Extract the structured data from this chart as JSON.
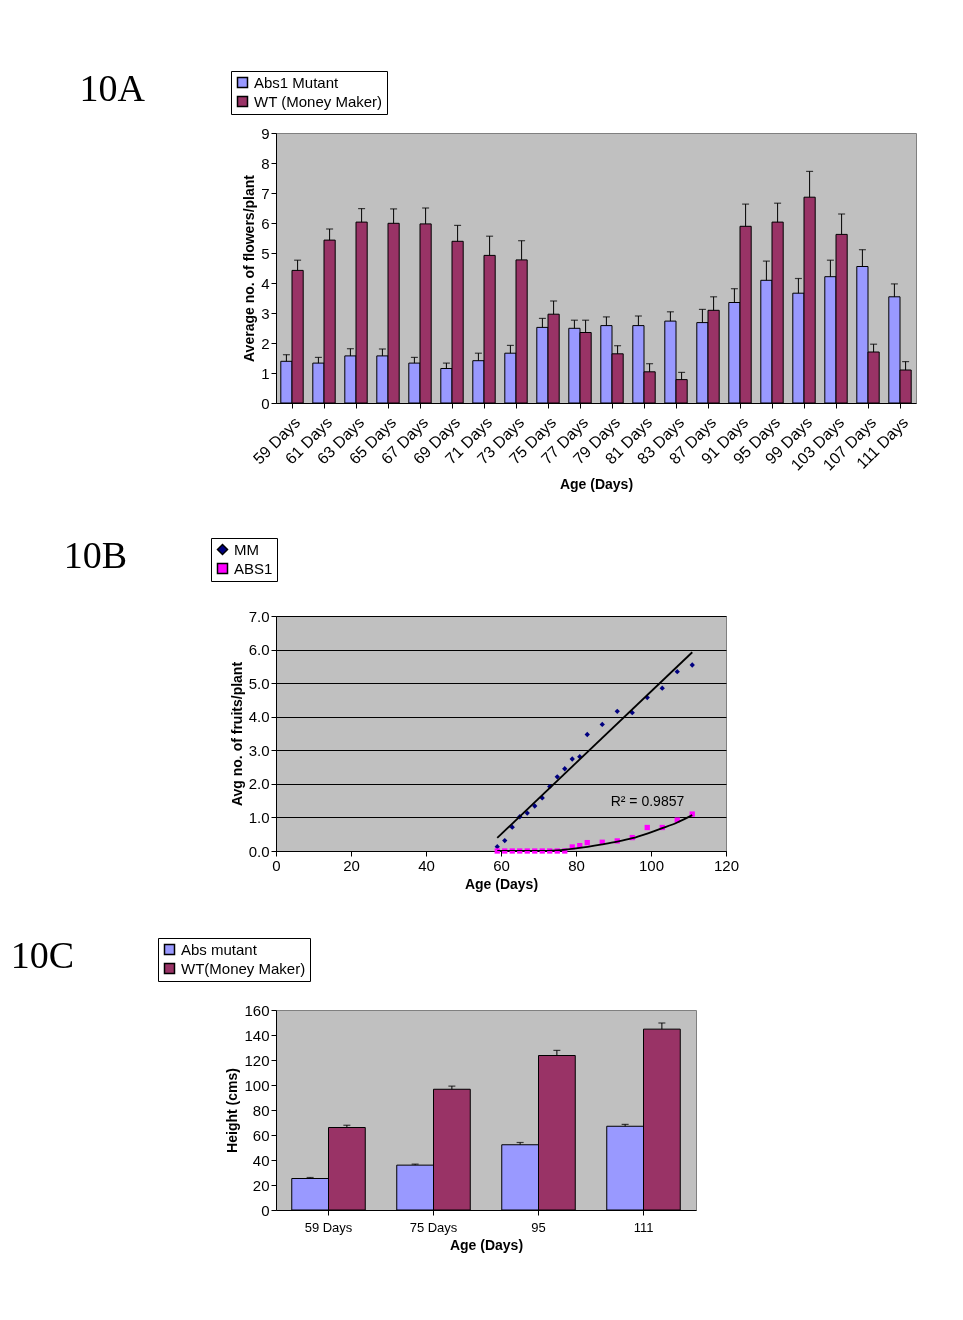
{
  "chart_data": [
    {
      "type": "bar",
      "title": "10A",
      "xlabel": "Age (Days)",
      "ylabel": "Average no. of flowers/plant",
      "categories": [
        "59 Days",
        "61 Days",
        "63 Days",
        "65 Days",
        "67 Days",
        "69 Days",
        "71 Days",
        "73 Days",
        "75 Days",
        "77 Days",
        "79 Days",
        "81 Days",
        "83 Days",
        "87 Days",
        "91 Days",
        "95 Days",
        "99 Days",
        "103 Days",
        "107 Days",
        "111 Days"
      ],
      "series": [
        {
          "name": "Abs1 Mutant",
          "color": "#9999ff",
          "values": [
            1.39,
            1.33,
            1.57,
            1.57,
            1.33,
            1.15,
            1.41,
            1.66,
            2.52,
            2.49,
            2.58,
            2.58,
            2.73,
            2.68,
            3.35,
            4.09,
            3.66,
            4.21,
            4.55,
            3.54
          ],
          "errors": [
            [
              1.39,
              1.61
            ],
            [
              1.33,
              1.52
            ],
            [
              1.57,
              1.81
            ],
            [
              1.57,
              1.8
            ],
            [
              1.33,
              1.52
            ],
            [
              1.15,
              1.33
            ],
            [
              1.41,
              1.66
            ],
            [
              1.66,
              1.92
            ],
            [
              2.52,
              2.82
            ],
            [
              2.49,
              2.76
            ],
            [
              2.58,
              2.87
            ],
            [
              2.58,
              2.9
            ],
            [
              2.73,
              3.04
            ],
            [
              2.68,
              3.12
            ],
            [
              3.35,
              3.81
            ],
            [
              4.09,
              4.73
            ],
            [
              3.66,
              4.15
            ],
            [
              4.21,
              4.76
            ],
            [
              4.55,
              5.11
            ],
            [
              3.54,
              3.97
            ]
          ]
        },
        {
          "name": "WT (Money Maker)",
          "color": "#993366",
          "values": [
            4.42,
            5.43,
            6.03,
            5.99,
            5.97,
            5.39,
            4.92,
            4.77,
            2.96,
            2.35,
            1.64,
            1.04,
            0.78,
            3.09,
            5.89,
            6.03,
            6.86,
            5.62,
            1.7,
            1.1
          ],
          "errors": [
            [
              4.42,
              4.76
            ],
            [
              5.43,
              5.8
            ],
            [
              6.03,
              6.48
            ],
            [
              5.99,
              6.47
            ],
            [
              5.97,
              6.5
            ],
            [
              5.39,
              5.92
            ],
            [
              4.92,
              5.56
            ],
            [
              4.77,
              5.41
            ],
            [
              2.96,
              3.4
            ],
            [
              2.35,
              2.76
            ],
            [
              1.64,
              1.91
            ],
            [
              1.04,
              1.31
            ],
            [
              0.78,
              1.02
            ],
            [
              3.09,
              3.54
            ],
            [
              5.89,
              6.63
            ],
            [
              6.03,
              6.66
            ],
            [
              6.86,
              7.72
            ],
            [
              5.62,
              6.3
            ],
            [
              1.7,
              1.96
            ],
            [
              1.1,
              1.38
            ]
          ]
        }
      ],
      "ylim": [
        0,
        9
      ],
      "yticks": [
        0,
        1,
        2,
        3,
        4,
        5,
        6,
        7,
        8,
        9
      ],
      "legend": "top left"
    },
    {
      "type": "scatter",
      "title": "10B",
      "xlabel": "Age (Days)",
      "ylabel": "Avg no. of fruits/plant",
      "xlim": [
        0,
        120
      ],
      "xticks": [
        0,
        20,
        40,
        60,
        80,
        100,
        120
      ],
      "ylim": [
        0,
        7
      ],
      "yticks": [
        {
          "value": 0,
          "label": "0.0"
        },
        {
          "value": 1,
          "label": "1.0"
        },
        {
          "value": 2,
          "label": "2.0"
        },
        {
          "value": 3,
          "label": "3.0"
        },
        {
          "value": 4,
          "label": "4.0"
        },
        {
          "value": 5,
          "label": "5.0"
        },
        {
          "value": 6,
          "label": "6.0"
        },
        {
          "value": 7,
          "label": "7.0"
        }
      ],
      "grid": "y",
      "legend": "top left",
      "annotations": [
        "R² = 0.9857"
      ],
      "series": [
        {
          "name": "MM",
          "color": "#000080",
          "marker": "diamond",
          "x": [
            59,
            61,
            63,
            65,
            67,
            69,
            71,
            73,
            75,
            77,
            79,
            81,
            83,
            87,
            91,
            95,
            99,
            103,
            107,
            111
          ],
          "values": [
            0.13,
            0.31,
            0.71,
            1.02,
            1.13,
            1.34,
            1.58,
            1.92,
            2.21,
            2.45,
            2.74,
            2.81,
            3.47,
            3.77,
            4.16,
            4.12,
            4.57,
            4.85,
            5.34,
            5.54
          ]
        },
        {
          "name": "ABS1",
          "color": "#ff00ff",
          "marker": "square",
          "x": [
            59,
            61,
            63,
            65,
            67,
            69,
            71,
            73,
            75,
            77,
            79,
            81,
            83,
            87,
            91,
            95,
            99,
            103,
            107,
            111
          ],
          "values": [
            0,
            0,
            0,
            0,
            0,
            0,
            0,
            0,
            0,
            0,
            0.12,
            0.16,
            0.25,
            0.26,
            0.3,
            0.4,
            0.7,
            0.7,
            0.92,
            1.1
          ]
        },
        {
          "type": "line",
          "color": "#000000",
          "x": [
            59,
            111
          ],
          "values": [
            0.39,
            5.92
          ]
        },
        {
          "type": "line",
          "color": "#000000",
          "x": [
            59,
            65,
            70,
            75,
            80,
            87,
            91,
            95,
            99,
            103,
            107,
            111
          ],
          "values": [
            0,
            0,
            0,
            0.02,
            0.08,
            0.2,
            0.28,
            0.38,
            0.52,
            0.68,
            0.85,
            1.07
          ]
        }
      ]
    },
    {
      "type": "bar",
      "title": "10C",
      "xlabel": "Age (Days)",
      "ylabel": "Height (cms)",
      "categories": [
        "59 Days",
        "75 Days",
        "95",
        "111"
      ],
      "series": [
        {
          "name": "Abs mutant",
          "color": "#9999ff",
          "values": [
            25.2,
            35.9,
            52.2,
            67.0
          ],
          "errors": [
            [
              25.2,
              26.0
            ],
            [
              35.9,
              36.7
            ],
            [
              52.2,
              54.0
            ],
            [
              67.0,
              68.5
            ]
          ]
        },
        {
          "name": "WT(Money Maker)",
          "color": "#993366",
          "values": [
            66.0,
            96.6,
            123.6,
            144.7
          ],
          "errors": [
            [
              66.0,
              67.8
            ],
            [
              96.6,
              99.1
            ],
            [
              123.6,
              127.7
            ],
            [
              144.7,
              149.6
            ]
          ]
        }
      ],
      "ylim": [
        0,
        160
      ],
      "yticks": [
        0,
        20,
        40,
        60,
        80,
        100,
        120,
        140,
        160
      ],
      "legend": "top left"
    }
  ]
}
